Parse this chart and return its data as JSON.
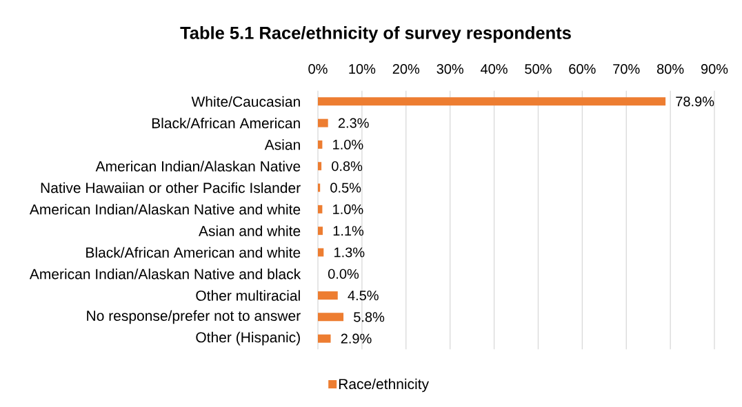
{
  "chart_data": {
    "type": "bar",
    "orientation": "horizontal",
    "title": "Table 5.1 Race/ethnicity of survey respondents",
    "categories": [
      "White/Caucasian",
      "Black/African American",
      "Asian",
      "American Indian/Alaskan Native",
      "Native Hawaiian or other Pacific Islander",
      "American Indian/Alaskan Native and white",
      "Asian and white",
      "Black/African American and white",
      "American Indian/Alaskan Native and black",
      "Other multiracial",
      "No response/prefer not to answer",
      "Other (Hispanic)"
    ],
    "series": [
      {
        "name": "Race/ethnicity",
        "color": "#ed7d31",
        "values": [
          78.9,
          2.3,
          1.0,
          0.8,
          0.5,
          1.0,
          1.1,
          1.3,
          0.0,
          4.5,
          5.8,
          2.9
        ],
        "value_labels": [
          "78.9%",
          "2.3%",
          "1.0%",
          "0.8%",
          "0.5%",
          "1.0%",
          "1.1%",
          "1.3%",
          "0.0%",
          "4.5%",
          "5.8%",
          "2.9%"
        ]
      }
    ],
    "xlim": [
      0,
      90
    ],
    "xticks": [
      {
        "value": 0,
        "label": "0%"
      },
      {
        "value": 10,
        "label": "10%"
      },
      {
        "value": 20,
        "label": "20%"
      },
      {
        "value": 30,
        "label": "30%"
      },
      {
        "value": 40,
        "label": "40%"
      },
      {
        "value": 50,
        "label": "50%"
      },
      {
        "value": 60,
        "label": "60%"
      },
      {
        "value": 70,
        "label": "70%"
      },
      {
        "value": 80,
        "label": "80%"
      },
      {
        "value": 90,
        "label": "90%"
      }
    ],
    "grid": "x",
    "legend": "bottom"
  }
}
